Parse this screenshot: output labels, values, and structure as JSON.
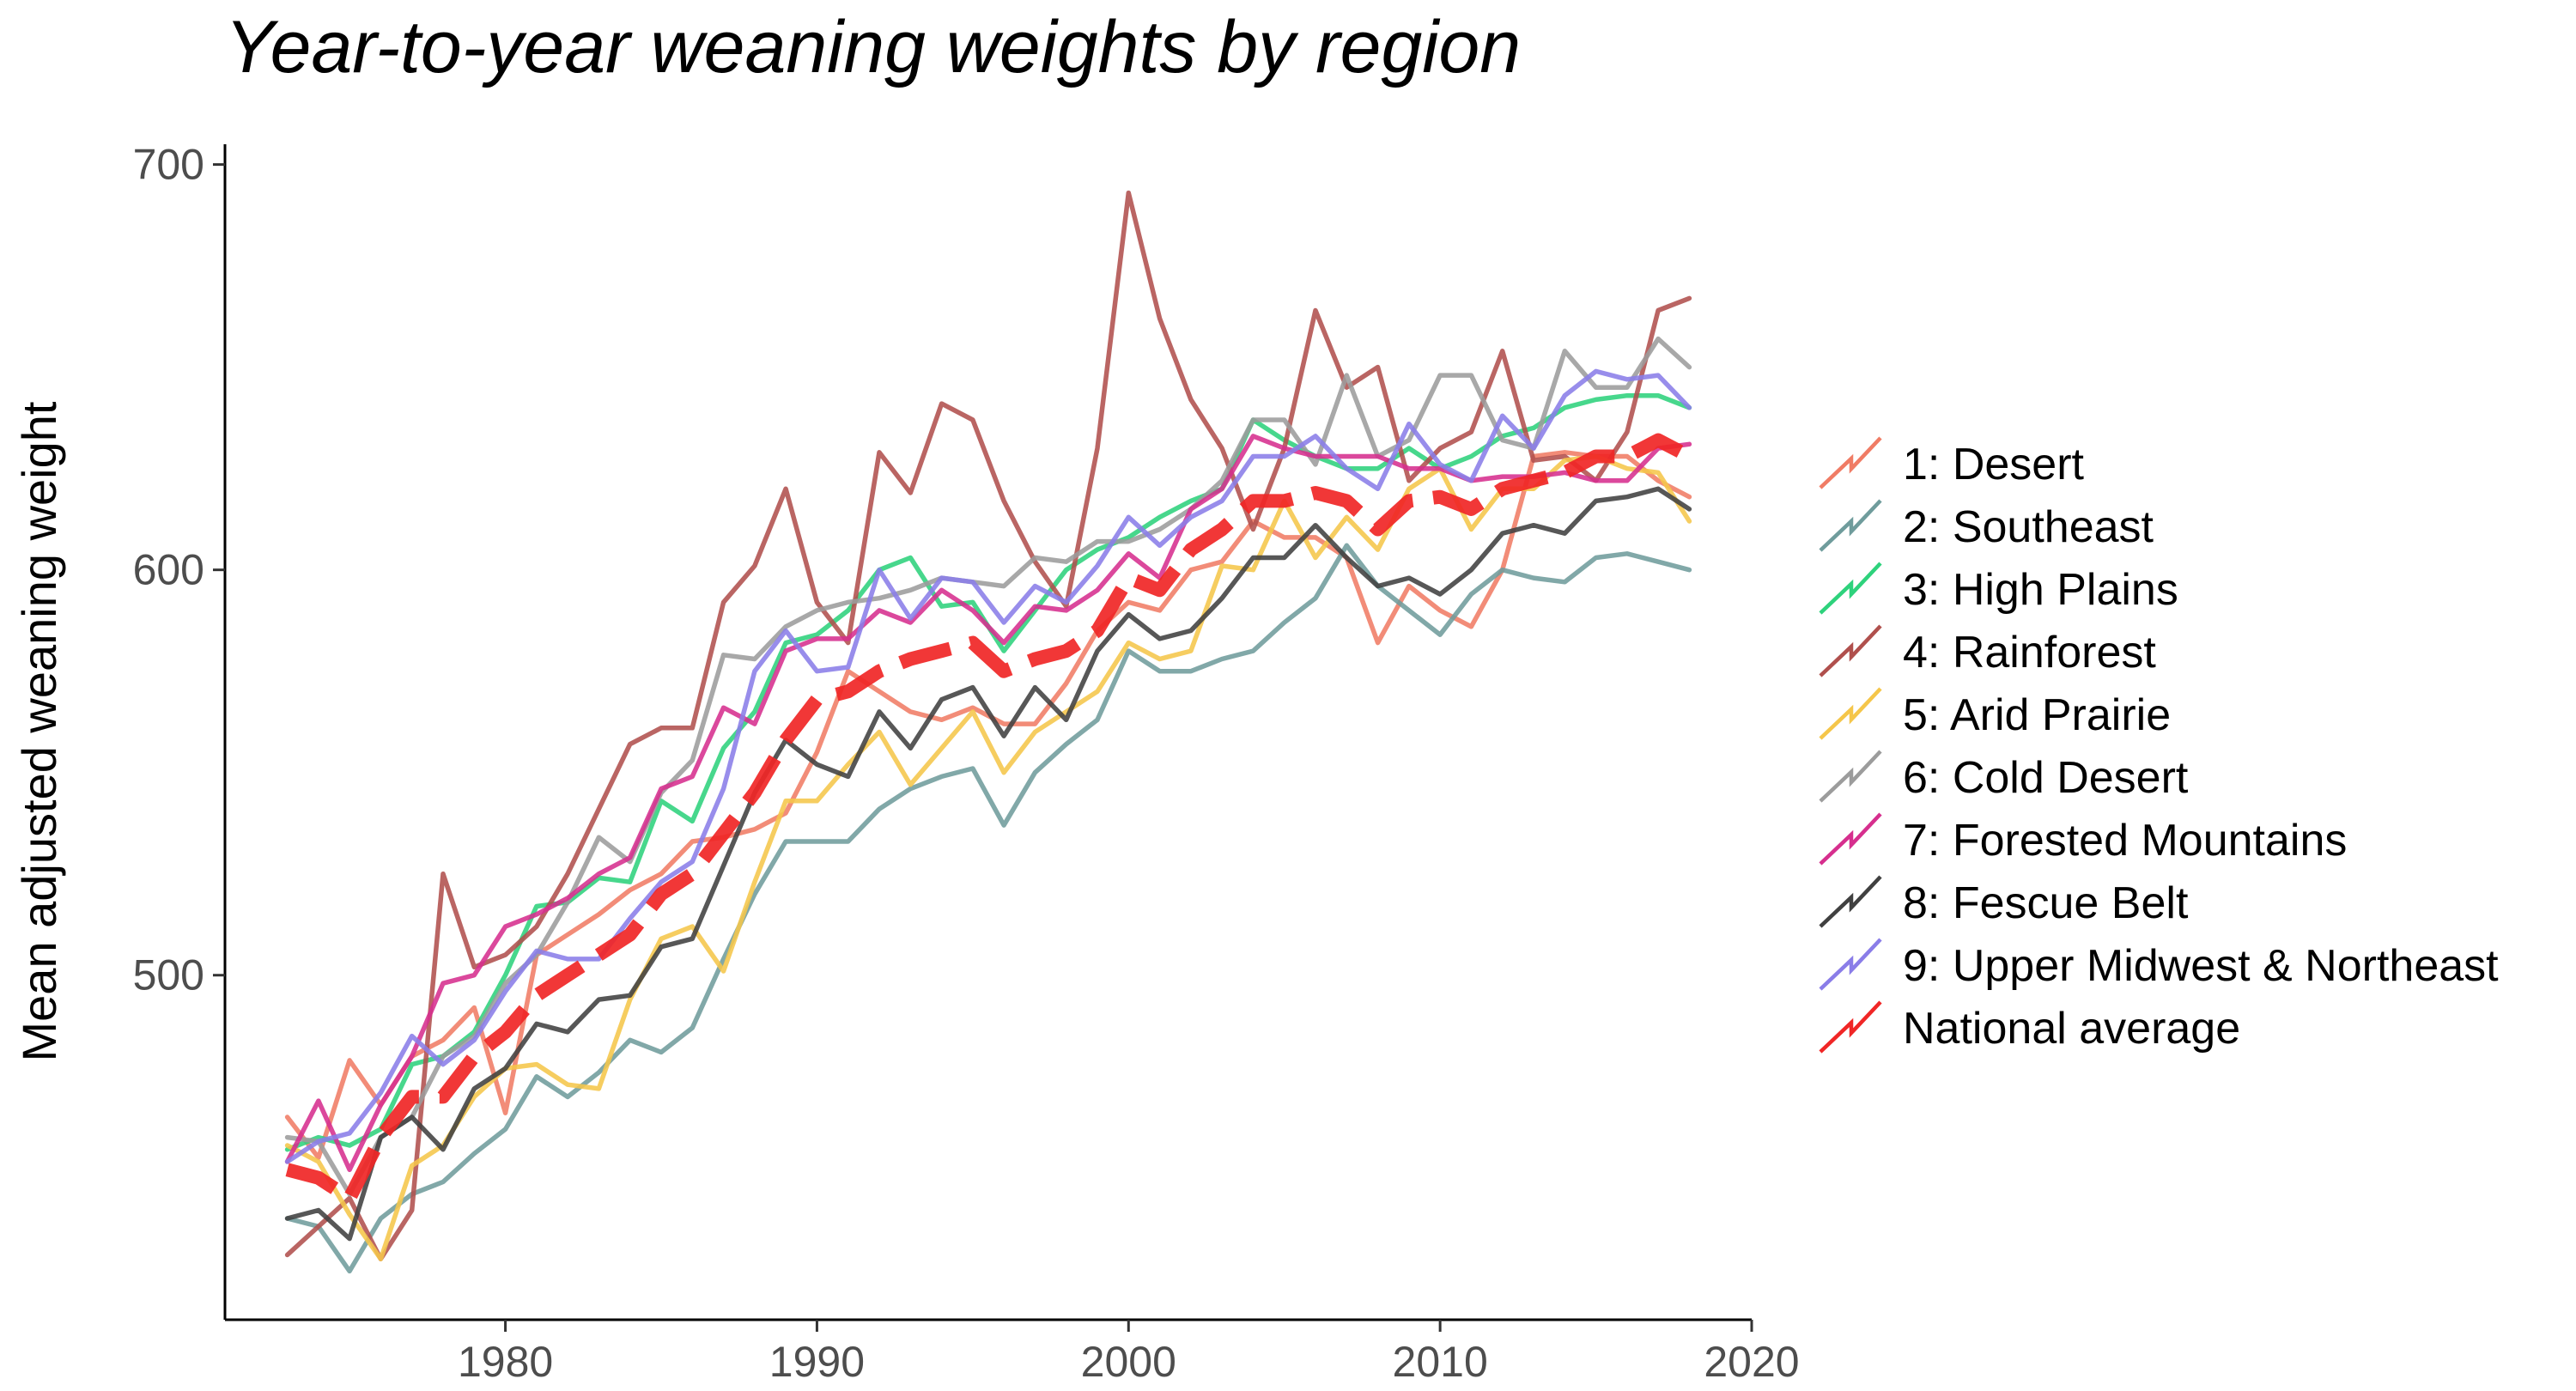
{
  "chart_data": {
    "type": "line",
    "title": "Year-to-year weaning weights by region",
    "xlabel": "",
    "ylabel": "Mean adjusted weaning weight",
    "xlim": [
      1971,
      2020
    ],
    "ylim": [
      415,
      705
    ],
    "xticks": [
      1980,
      1990,
      2000,
      2010,
      2020
    ],
    "yticks": [
      500,
      600,
      700
    ],
    "grid": false,
    "legend_position": "right",
    "x": [
      1973,
      1974,
      1975,
      1976,
      1977,
      1978,
      1979,
      1980,
      1981,
      1982,
      1983,
      1984,
      1985,
      1986,
      1987,
      1988,
      1989,
      1990,
      1991,
      1992,
      1993,
      1994,
      1995,
      1996,
      1997,
      1998,
      1999,
      2000,
      2001,
      2002,
      2003,
      2004,
      2005,
      2006,
      2007,
      2008,
      2009,
      2010,
      2011,
      2012,
      2013,
      2014,
      2015,
      2016,
      2017,
      2018
    ],
    "series": [
      {
        "name": "1: Desert",
        "color": "#f07c65",
        "dashed": false,
        "values": [
          465,
          455,
          479,
          468,
          480,
          484,
          492,
          466,
          505,
          510,
          515,
          521,
          525,
          533,
          534,
          536,
          540,
          555,
          575,
          570,
          565,
          563,
          566,
          562,
          562,
          572,
          585,
          592,
          590,
          600,
          602,
          612,
          608,
          608,
          603,
          582,
          596,
          590,
          586,
          600,
          628,
          629,
          628,
          628,
          622,
          618
        ]
      },
      {
        "name": "2: Southeast",
        "color": "#6f9c9c",
        "dashed": false,
        "values": [
          440,
          438,
          427,
          440,
          446,
          449,
          456,
          462,
          475,
          470,
          476,
          484,
          481,
          487,
          504,
          520,
          533,
          533,
          533,
          541,
          546,
          549,
          551,
          537,
          550,
          557,
          563,
          580,
          575,
          575,
          578,
          580,
          587,
          593,
          606,
          596,
          590,
          584,
          594,
          600,
          598,
          597,
          603,
          604,
          602,
          600
        ]
      },
      {
        "name": "3: High Plains",
        "color": "#2ed27c",
        "dashed": false,
        "values": [
          457,
          460,
          458,
          462,
          478,
          480,
          486,
          500,
          517,
          518,
          524,
          523,
          543,
          538,
          556,
          565,
          582,
          584,
          590,
          600,
          603,
          591,
          592,
          580,
          590,
          600,
          605,
          608,
          613,
          617,
          620,
          637,
          632,
          628,
          625,
          625,
          630,
          625,
          628,
          633,
          635,
          640,
          642,
          643,
          643,
          640
        ]
      },
      {
        "name": "4: Rainforest",
        "color": "#b0504d",
        "dashed": false,
        "values": [
          431,
          438,
          445,
          430,
          442,
          525,
          502,
          505,
          512,
          525,
          541,
          557,
          561,
          561,
          592,
          601,
          620,
          592,
          582,
          629,
          619,
          641,
          637,
          617,
          602,
          591,
          630,
          693,
          662,
          642,
          630,
          610,
          630,
          664,
          645,
          650,
          622,
          630,
          634,
          654,
          627,
          628,
          622,
          634,
          664,
          667
        ]
      },
      {
        "name": "5: Arid Prairie",
        "color": "#f5c64a",
        "dashed": false,
        "values": [
          458,
          454,
          441,
          430,
          453,
          458,
          470,
          477,
          478,
          473,
          472,
          494,
          509,
          512,
          501,
          523,
          543,
          543,
          552,
          560,
          547,
          556,
          565,
          550,
          560,
          565,
          570,
          582,
          578,
          580,
          601,
          600,
          617,
          603,
          613,
          605,
          620,
          625,
          610,
          620,
          620,
          627,
          628,
          625,
          624,
          612
        ]
      },
      {
        "name": "6: Cold Desert",
        "color": "#9c9c9c",
        "dashed": false,
        "values": [
          460,
          459,
          446,
          460,
          465,
          480,
          485,
          498,
          505,
          518,
          534,
          528,
          545,
          553,
          579,
          578,
          586,
          590,
          592,
          593,
          595,
          598,
          597,
          596,
          603,
          602,
          607,
          607,
          610,
          615,
          622,
          637,
          637,
          626,
          648,
          628,
          632,
          648,
          648,
          632,
          630,
          654,
          645,
          645,
          657,
          650
        ]
      },
      {
        "name": "7: Forested Mountains",
        "color": "#d62f8e",
        "dashed": false,
        "values": [
          454,
          469,
          452,
          468,
          480,
          498,
          500,
          512,
          515,
          519,
          525,
          529,
          546,
          549,
          566,
          562,
          580,
          583,
          583,
          590,
          587,
          595,
          590,
          582,
          591,
          590,
          595,
          604,
          598,
          615,
          620,
          633,
          630,
          628,
          628,
          628,
          625,
          625,
          622,
          623,
          623,
          624,
          622,
          622,
          630,
          631
        ]
      },
      {
        "name": "8: Fescue Belt",
        "color": "#404040",
        "dashed": false,
        "values": [
          440,
          442,
          435,
          460,
          465,
          457,
          472,
          477,
          488,
          486,
          494,
          495,
          507,
          509,
          527,
          545,
          558,
          552,
          549,
          565,
          556,
          568,
          571,
          559,
          571,
          563,
          580,
          589,
          583,
          585,
          593,
          603,
          603,
          611,
          603,
          596,
          598,
          594,
          600,
          609,
          611,
          609,
          617,
          618,
          620,
          615
        ]
      },
      {
        "name": "9: Upper Midwest & Northeast",
        "color": "#8a7de8",
        "dashed": false,
        "values": [
          454,
          459,
          461,
          471,
          485,
          478,
          484,
          496,
          506,
          504,
          504,
          514,
          523,
          528,
          546,
          575,
          585,
          575,
          576,
          600,
          588,
          598,
          597,
          587,
          596,
          592,
          601,
          613,
          606,
          613,
          617,
          628,
          628,
          633,
          625,
          620,
          636,
          626,
          622,
          638,
          630,
          643,
          649,
          647,
          648,
          640
        ]
      },
      {
        "name": "National average",
        "color": "#f02626",
        "dashed": true,
        "values": [
          452,
          450,
          445,
          460,
          470,
          470,
          480,
          486,
          495,
          500,
          505,
          510,
          520,
          525,
          535,
          545,
          558,
          568,
          570,
          575,
          578,
          580,
          582,
          575,
          578,
          580,
          585,
          598,
          595,
          605,
          610,
          617,
          617,
          619,
          617,
          610,
          617,
          618,
          615,
          620,
          622,
          624,
          628,
          628,
          632,
          628
        ]
      }
    ]
  }
}
